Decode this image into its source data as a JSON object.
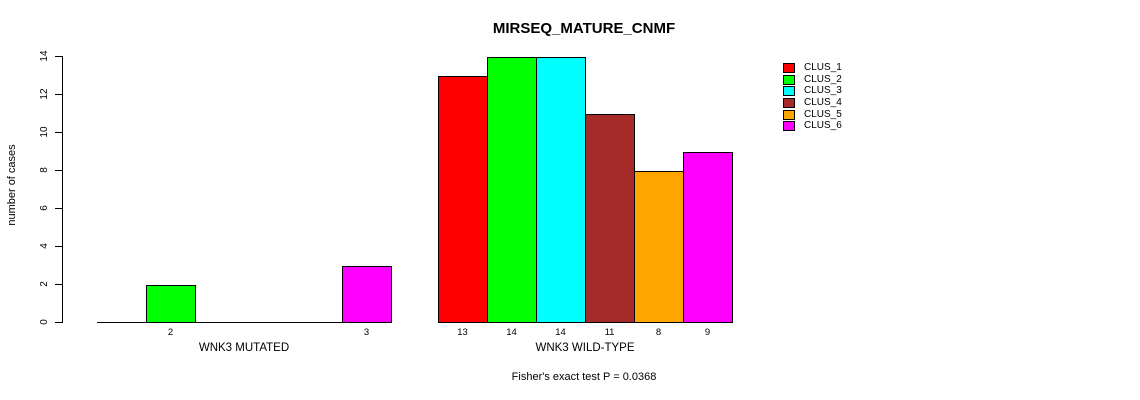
{
  "chart_data": {
    "type": "bar",
    "title": "MIRSEQ_MATURE_CNMF",
    "ylabel": "number of cases",
    "xlabel": "",
    "ylim": [
      0,
      14
    ],
    "yticks": [
      0,
      2,
      4,
      6,
      8,
      10,
      12,
      14
    ],
    "grid": false,
    "annotation": "Fisher's exact test P = 0.0368",
    "legend": {
      "position": "right",
      "entries": [
        {
          "label": "CLUS_1",
          "color": "#FF0000"
        },
        {
          "label": "CLUS_2",
          "color": "#00FF00"
        },
        {
          "label": "CLUS_3",
          "color": "#00FFFF"
        },
        {
          "label": "CLUS_4",
          "color": "#A52A2A"
        },
        {
          "label": "CLUS_5",
          "color": "#FFA500"
        },
        {
          "label": "CLUS_6",
          "color": "#FF00FF"
        }
      ]
    },
    "series_names": [
      "CLUS_1",
      "CLUS_2",
      "CLUS_3",
      "CLUS_4",
      "CLUS_5",
      "CLUS_6"
    ],
    "groups": [
      {
        "label": "WNK3 MUTATED",
        "values": [
          0,
          2,
          0,
          0,
          0,
          3
        ]
      },
      {
        "label": "WNK3 WILD-TYPE",
        "values": [
          13,
          14,
          14,
          11,
          8,
          9
        ]
      }
    ],
    "value_labels": {
      "show": true,
      "hide_zero": true
    }
  }
}
